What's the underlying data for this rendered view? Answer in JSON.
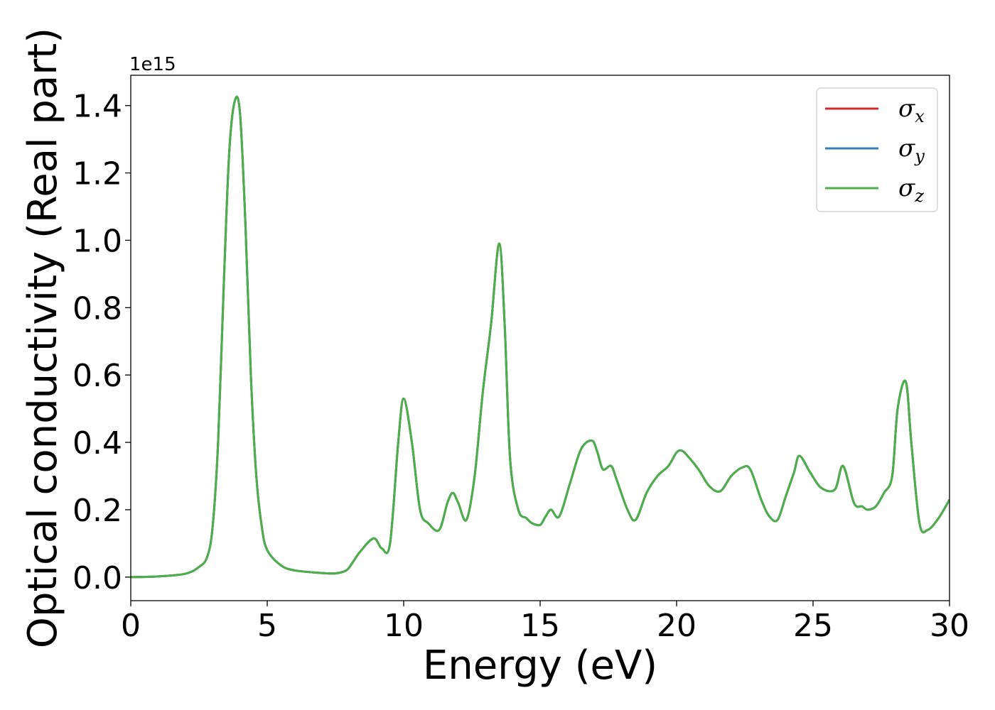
{
  "chart_data": {
    "type": "line",
    "xlabel": "Energy (eV)",
    "ylabel": "Optical conductivity (Real part)",
    "y_offset_label": "1e15",
    "xlim": [
      0,
      30
    ],
    "ylim": [
      -0.07,
      1.49
    ],
    "x_ticks": [
      0,
      5,
      10,
      15,
      20,
      25,
      30
    ],
    "x_tick_labels": [
      "0",
      "5",
      "10",
      "15",
      "20",
      "25",
      "30"
    ],
    "y_ticks": [
      0.0,
      0.2,
      0.4,
      0.6,
      0.8,
      1.0,
      1.2,
      1.4
    ],
    "y_tick_labels": [
      "0.0",
      "0.2",
      "0.4",
      "0.6",
      "0.8",
      "1.0",
      "1.2",
      "1.4"
    ],
    "grid": false,
    "legend_position": "top-right",
    "x": [
      0,
      1,
      2,
      2.5,
      2.8,
      3.0,
      3.2,
      3.4,
      3.6,
      3.8,
      4.0,
      4.2,
      4.4,
      4.6,
      4.8,
      5.0,
      5.5,
      6.0,
      7.0,
      7.5,
      7.9,
      8.1,
      8.4,
      8.9,
      9.2,
      9.5,
      9.8,
      10.0,
      10.3,
      10.6,
      10.9,
      11.3,
      11.6,
      11.8,
      12.0,
      12.3,
      12.6,
      12.9,
      13.2,
      13.5,
      13.7,
      13.9,
      14.2,
      14.5,
      14.7,
      15.0,
      15.2,
      15.4,
      15.7,
      16.1,
      16.5,
      16.9,
      17.1,
      17.3,
      17.6,
      17.8,
      18.2,
      18.5,
      18.9,
      19.3,
      19.7,
      20.0,
      20.2,
      20.4,
      20.8,
      21.2,
      21.6,
      22.0,
      22.4,
      22.7,
      23.1,
      23.4,
      23.7,
      24.0,
      24.3,
      24.5,
      24.9,
      25.3,
      25.8,
      26.1,
      26.5,
      26.8,
      27.0,
      27.3,
      27.6,
      27.9,
      28.1,
      28.4,
      28.6,
      28.9,
      29.2,
      29.6,
      30.0
    ],
    "series": [
      {
        "name": "σx",
        "color": "#d62728",
        "values": [
          0,
          0.002,
          0.01,
          0.03,
          0.06,
          0.15,
          0.4,
          0.85,
          1.25,
          1.41,
          1.38,
          1.05,
          0.6,
          0.3,
          0.15,
          0.08,
          0.035,
          0.02,
          0.012,
          0.011,
          0.02,
          0.04,
          0.075,
          0.115,
          0.085,
          0.1,
          0.4,
          0.53,
          0.4,
          0.2,
          0.16,
          0.14,
          0.22,
          0.25,
          0.22,
          0.17,
          0.3,
          0.55,
          0.75,
          0.99,
          0.75,
          0.35,
          0.2,
          0.175,
          0.16,
          0.155,
          0.18,
          0.2,
          0.18,
          0.28,
          0.38,
          0.405,
          0.37,
          0.32,
          0.33,
          0.29,
          0.2,
          0.17,
          0.25,
          0.3,
          0.33,
          0.37,
          0.375,
          0.36,
          0.32,
          0.27,
          0.255,
          0.3,
          0.325,
          0.32,
          0.23,
          0.18,
          0.17,
          0.24,
          0.31,
          0.36,
          0.31,
          0.265,
          0.26,
          0.33,
          0.22,
          0.21,
          0.2,
          0.21,
          0.25,
          0.3,
          0.5,
          0.58,
          0.4,
          0.16,
          0.14,
          0.175,
          0.23
        ]
      },
      {
        "name": "σy",
        "color": "#377eb8",
        "values": [
          0,
          0.002,
          0.01,
          0.03,
          0.06,
          0.15,
          0.4,
          0.85,
          1.25,
          1.41,
          1.38,
          1.05,
          0.6,
          0.3,
          0.15,
          0.08,
          0.035,
          0.02,
          0.012,
          0.011,
          0.02,
          0.04,
          0.075,
          0.115,
          0.085,
          0.1,
          0.4,
          0.53,
          0.4,
          0.2,
          0.16,
          0.14,
          0.22,
          0.25,
          0.22,
          0.17,
          0.3,
          0.55,
          0.75,
          0.99,
          0.75,
          0.35,
          0.2,
          0.175,
          0.16,
          0.155,
          0.18,
          0.2,
          0.18,
          0.28,
          0.38,
          0.405,
          0.37,
          0.32,
          0.33,
          0.29,
          0.2,
          0.17,
          0.25,
          0.3,
          0.33,
          0.37,
          0.375,
          0.36,
          0.32,
          0.27,
          0.255,
          0.3,
          0.325,
          0.32,
          0.23,
          0.18,
          0.17,
          0.24,
          0.31,
          0.36,
          0.31,
          0.265,
          0.26,
          0.33,
          0.22,
          0.21,
          0.2,
          0.21,
          0.25,
          0.3,
          0.5,
          0.58,
          0.4,
          0.16,
          0.14,
          0.175,
          0.23
        ]
      },
      {
        "name": "σz",
        "color": "#4daf4a",
        "values": [
          0,
          0.002,
          0.01,
          0.03,
          0.06,
          0.15,
          0.4,
          0.85,
          1.25,
          1.41,
          1.38,
          1.05,
          0.6,
          0.3,
          0.15,
          0.08,
          0.035,
          0.02,
          0.012,
          0.011,
          0.02,
          0.04,
          0.075,
          0.115,
          0.085,
          0.1,
          0.4,
          0.53,
          0.4,
          0.2,
          0.16,
          0.14,
          0.22,
          0.25,
          0.22,
          0.17,
          0.3,
          0.55,
          0.75,
          0.99,
          0.75,
          0.35,
          0.2,
          0.175,
          0.16,
          0.155,
          0.18,
          0.2,
          0.18,
          0.28,
          0.38,
          0.405,
          0.37,
          0.32,
          0.33,
          0.29,
          0.2,
          0.17,
          0.25,
          0.3,
          0.33,
          0.37,
          0.375,
          0.36,
          0.32,
          0.27,
          0.255,
          0.3,
          0.325,
          0.32,
          0.23,
          0.18,
          0.17,
          0.24,
          0.31,
          0.36,
          0.31,
          0.265,
          0.26,
          0.33,
          0.22,
          0.21,
          0.2,
          0.21,
          0.25,
          0.3,
          0.5,
          0.58,
          0.4,
          0.16,
          0.14,
          0.175,
          0.23
        ]
      }
    ],
    "legend": [
      {
        "symbol": "σ",
        "subscript": "x"
      },
      {
        "symbol": "σ",
        "subscript": "y"
      },
      {
        "symbol": "σ",
        "subscript": "z"
      }
    ]
  }
}
